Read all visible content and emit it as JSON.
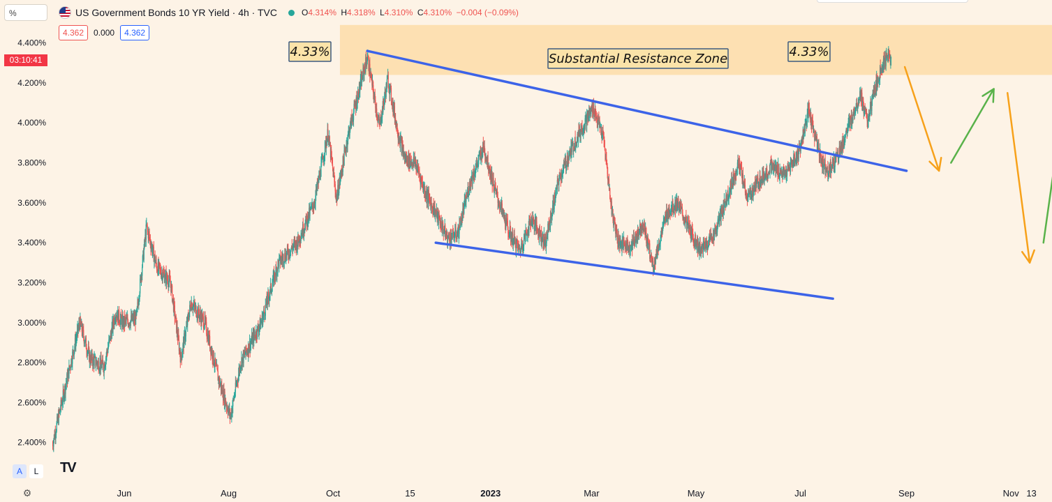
{
  "header": {
    "unit_selector": "%",
    "title": "US Government Bonds 10 YR Yield · 4h · TVC",
    "ohlc": [
      {
        "label": "O",
        "value": "4.314%"
      },
      {
        "label": "H",
        "value": "4.318%"
      },
      {
        "label": "L",
        "value": "4.310%"
      },
      {
        "label": "C",
        "value": "4.310%"
      }
    ],
    "change": "−0.004 (−0.09%)",
    "indicator_values": [
      "4.362",
      "0.000",
      "4.362"
    ],
    "countdown": "03:10:41"
  },
  "bottom": {
    "auto_label": "A",
    "log_label": "L",
    "logo_text": "TV"
  },
  "colors": {
    "background": "#fdf3e6",
    "up": "#26a69a",
    "down": "#ef5350",
    "trendline": "#3c63e8",
    "zone": "#fde0b2",
    "projection_down": "#f7a11a",
    "projection_up": "#59b24a"
  },
  "chart_data": {
    "type": "candlestick",
    "title": "US Government Bonds 10 YR Yield",
    "timeframe": "4h",
    "ylim": [
      2.35,
      4.55
    ],
    "ytick_values": [
      2.4,
      2.6,
      2.8,
      3.0,
      3.2,
      3.4,
      3.6,
      3.8,
      4.0,
      4.2,
      4.4
    ],
    "ytick_labels": [
      "2.400%",
      "2.600%",
      "2.800%",
      "3.000%",
      "3.200%",
      "3.400%",
      "3.600%",
      "3.800%",
      "4.000%",
      "4.200%",
      "4.400%"
    ],
    "xlim": [
      "2022-04-20",
      "2023-11-25"
    ],
    "xticks": [
      {
        "date": "2022-06-01",
        "label": "Jun"
      },
      {
        "date": "2022-08-01",
        "label": "Aug"
      },
      {
        "date": "2022-10-01",
        "label": "Oct"
      },
      {
        "date": "2022-11-15",
        "label": "15"
      },
      {
        "date": "2023-01-01",
        "label": "2023"
      },
      {
        "date": "2023-03-01",
        "label": "Mar"
      },
      {
        "date": "2023-05-01",
        "label": "May"
      },
      {
        "date": "2023-07-01",
        "label": "Jul"
      },
      {
        "date": "2023-09-01",
        "label": "Sep"
      },
      {
        "date": "2023-11-01",
        "label": "Nov"
      },
      {
        "date": "2023-11-13",
        "label": "13"
      }
    ],
    "price_path": [
      [
        "2022-04-20",
        2.39
      ],
      [
        "2022-04-26",
        2.62
      ],
      [
        "2022-05-06",
        3.0
      ],
      [
        "2022-05-12",
        2.82
      ],
      [
        "2022-05-20",
        2.78
      ],
      [
        "2022-05-27",
        3.05
      ],
      [
        "2022-05-31",
        3.0
      ],
      [
        "2022-06-08",
        3.02
      ],
      [
        "2022-06-14",
        3.48
      ],
      [
        "2022-06-20",
        3.28
      ],
      [
        "2022-06-28",
        3.2
      ],
      [
        "2022-07-04",
        2.82
      ],
      [
        "2022-07-10",
        3.1
      ],
      [
        "2022-07-18",
        3.0
      ],
      [
        "2022-07-26",
        2.72
      ],
      [
        "2022-08-02",
        2.53
      ],
      [
        "2022-08-08",
        2.8
      ],
      [
        "2022-08-20",
        3.0
      ],
      [
        "2022-08-30",
        3.3
      ],
      [
        "2022-09-10",
        3.4
      ],
      [
        "2022-09-20",
        3.6
      ],
      [
        "2022-09-28",
        3.95
      ],
      [
        "2022-10-03",
        3.62
      ],
      [
        "2022-10-10",
        3.95
      ],
      [
        "2022-10-21",
        4.33
      ],
      [
        "2022-10-28",
        3.98
      ],
      [
        "2022-11-02",
        4.22
      ],
      [
        "2022-11-08",
        3.95
      ],
      [
        "2022-11-12",
        3.82
      ],
      [
        "2022-11-18",
        3.8
      ],
      [
        "2022-11-24",
        3.65
      ],
      [
        "2022-11-30",
        3.55
      ],
      [
        "2022-12-07",
        3.42
      ],
      [
        "2022-12-13",
        3.45
      ],
      [
        "2022-12-20",
        3.7
      ],
      [
        "2022-12-28",
        3.88
      ],
      [
        "2023-01-04",
        3.65
      ],
      [
        "2023-01-12",
        3.45
      ],
      [
        "2023-01-18",
        3.36
      ],
      [
        "2023-01-25",
        3.52
      ],
      [
        "2023-02-02",
        3.4
      ],
      [
        "2023-02-10",
        3.72
      ],
      [
        "2023-02-20",
        3.92
      ],
      [
        "2023-03-02",
        4.08
      ],
      [
        "2023-03-08",
        3.92
      ],
      [
        "2023-03-13",
        3.55
      ],
      [
        "2023-03-17",
        3.4
      ],
      [
        "2023-03-24",
        3.38
      ],
      [
        "2023-03-31",
        3.5
      ],
      [
        "2023-04-06",
        3.28
      ],
      [
        "2023-04-14",
        3.55
      ],
      [
        "2023-04-20",
        3.6
      ],
      [
        "2023-04-28",
        3.45
      ],
      [
        "2023-05-04",
        3.36
      ],
      [
        "2023-05-12",
        3.45
      ],
      [
        "2023-05-22",
        3.7
      ],
      [
        "2023-05-26",
        3.8
      ],
      [
        "2023-05-31",
        3.62
      ],
      [
        "2023-06-06",
        3.7
      ],
      [
        "2023-06-14",
        3.78
      ],
      [
        "2023-06-22",
        3.74
      ],
      [
        "2023-06-30",
        3.85
      ],
      [
        "2023-07-06",
        4.06
      ],
      [
        "2023-07-11",
        3.88
      ],
      [
        "2023-07-14",
        3.8
      ],
      [
        "2023-07-18",
        3.76
      ],
      [
        "2023-07-25",
        3.88
      ],
      [
        "2023-08-01",
        4.05
      ],
      [
        "2023-08-05",
        4.15
      ],
      [
        "2023-08-09",
        4.0
      ],
      [
        "2023-08-14",
        4.18
      ],
      [
        "2023-08-18",
        4.3
      ],
      [
        "2023-08-22",
        4.33
      ],
      [
        "2023-08-23",
        4.31
      ]
    ],
    "annotations": {
      "resistance_zone": {
        "from": "2022-10-05",
        "to": "2023-11-25",
        "y_low": 4.24,
        "y_high": 4.49,
        "label": "Substantial Resistance Zone"
      },
      "peak_labels": [
        {
          "date": "2022-10-21",
          "value": 4.33,
          "label": "4.33%"
        },
        {
          "date": "2023-08-22",
          "value": 4.33,
          "label": "4.33%"
        }
      ],
      "trendlines": [
        {
          "from": [
            "2022-10-21",
            4.36
          ],
          "to": [
            "2023-09-01",
            3.76
          ]
        },
        {
          "from": [
            "2022-11-30",
            3.4
          ],
          "to": [
            "2023-07-20",
            3.12
          ]
        }
      ],
      "projection_arrows": [
        {
          "color": "down",
          "from": [
            "2023-08-31",
            4.28
          ],
          "to": [
            "2023-09-20",
            3.76
          ]
        },
        {
          "color": "up",
          "from": [
            "2023-09-27",
            3.8
          ],
          "to": [
            "2023-10-22",
            4.17
          ]
        },
        {
          "color": "down",
          "from": [
            "2023-10-30",
            4.15
          ],
          "to": [
            "2023-11-12",
            3.3
          ]
        },
        {
          "color": "up",
          "from": [
            "2023-11-20",
            3.4
          ],
          "to": [
            "2023-12-10",
            4.61
          ]
        }
      ]
    }
  }
}
